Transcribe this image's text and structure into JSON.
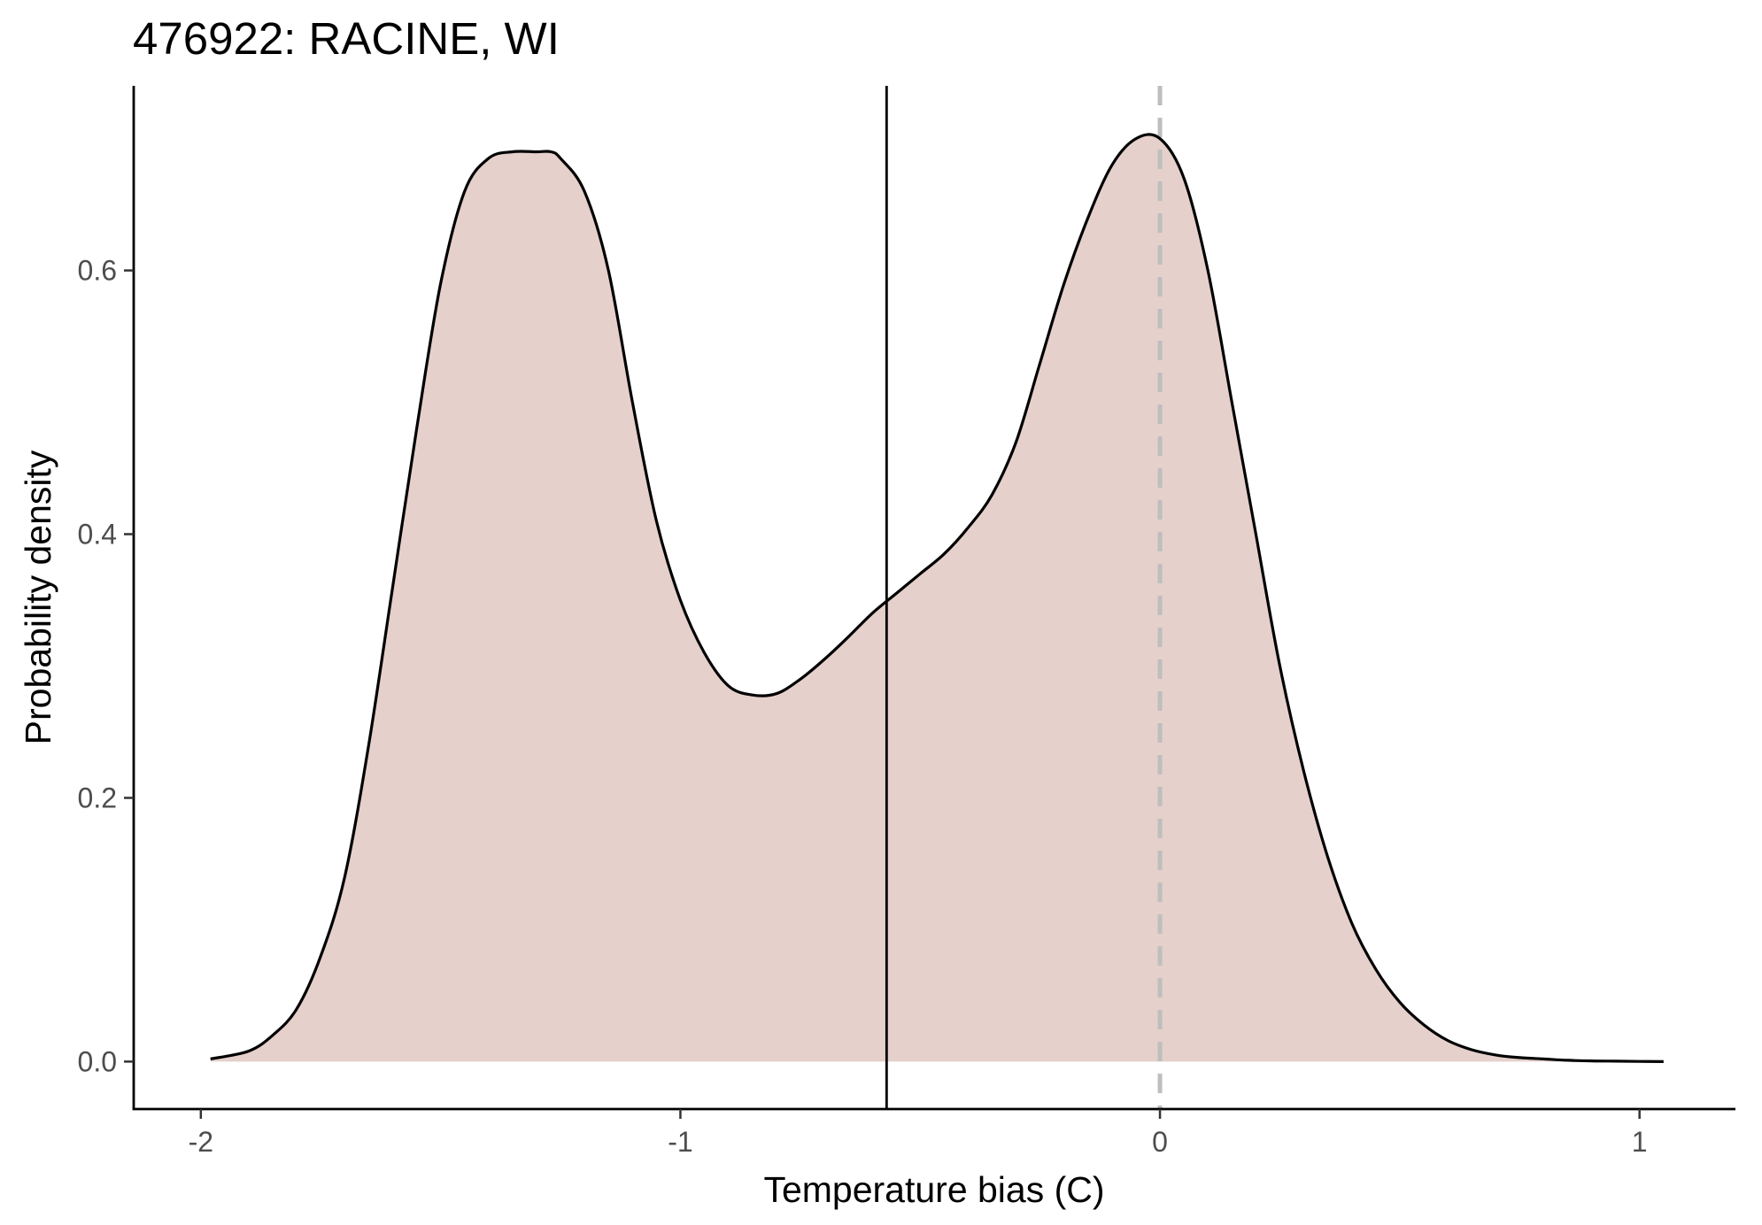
{
  "chart_data": {
    "type": "area",
    "title": "476922: RACINE, WI",
    "xlabel": "Temperature bias (C)",
    "ylabel": "Probability density",
    "xlim": [
      -2.14,
      1.2
    ],
    "ylim": [
      -0.036,
      0.74
    ],
    "x_ticks": [
      {
        "value": -2,
        "label": "-2"
      },
      {
        "value": -1,
        "label": "-1"
      },
      {
        "value": 0,
        "label": "0"
      },
      {
        "value": 1,
        "label": "1"
      }
    ],
    "y_ticks": [
      {
        "value": 0.0,
        "label": "0.0"
      },
      {
        "value": 0.2,
        "label": "0.2"
      },
      {
        "value": 0.4,
        "label": "0.4"
      },
      {
        "value": 0.6,
        "label": "0.6"
      }
    ],
    "grid": false,
    "fill_color": "#e5d0cb",
    "line_color": "#000000",
    "density": {
      "x": [
        -1.98,
        -1.9,
        -1.85,
        -1.8,
        -1.75,
        -1.7,
        -1.65,
        -1.6,
        -1.55,
        -1.5,
        -1.45,
        -1.4,
        -1.35,
        -1.3,
        -1.27,
        -1.25,
        -1.2,
        -1.15,
        -1.1,
        -1.05,
        -1.0,
        -0.95,
        -0.9,
        -0.85,
        -0.8,
        -0.75,
        -0.7,
        -0.65,
        -0.6,
        -0.55,
        -0.5,
        -0.45,
        -0.4,
        -0.35,
        -0.3,
        -0.25,
        -0.2,
        -0.15,
        -0.1,
        -0.05,
        0.0,
        0.05,
        0.1,
        0.15,
        0.2,
        0.25,
        0.3,
        0.35,
        0.4,
        0.45,
        0.5,
        0.55,
        0.6,
        0.65,
        0.7,
        0.75,
        0.8,
        0.85,
        0.9,
        0.95,
        1.0,
        1.05
      ],
      "y": [
        0.002,
        0.008,
        0.02,
        0.04,
        0.08,
        0.14,
        0.24,
        0.36,
        0.48,
        0.59,
        0.66,
        0.685,
        0.69,
        0.69,
        0.69,
        0.685,
        0.66,
        0.6,
        0.5,
        0.41,
        0.35,
        0.31,
        0.285,
        0.278,
        0.279,
        0.29,
        0.305,
        0.322,
        0.34,
        0.355,
        0.37,
        0.385,
        0.405,
        0.43,
        0.47,
        0.53,
        0.59,
        0.64,
        0.68,
        0.7,
        0.7,
        0.67,
        0.6,
        0.5,
        0.4,
        0.3,
        0.22,
        0.155,
        0.105,
        0.07,
        0.045,
        0.028,
        0.016,
        0.009,
        0.005,
        0.003,
        0.002,
        0.001,
        0.0005,
        0.0003,
        0.0001,
        0.0
      ]
    },
    "vlines": [
      {
        "x": -0.57,
        "color": "#000000",
        "style": "solid"
      },
      {
        "x": 0.0,
        "color": "#bebebe",
        "style": "dashed"
      }
    ]
  }
}
